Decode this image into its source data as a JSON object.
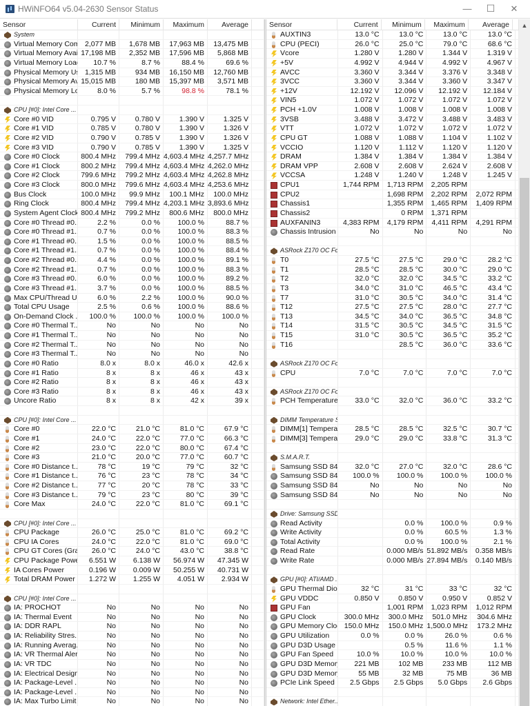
{
  "window": {
    "title": "HWiNFO64 v5.04-2630 Sensor Status",
    "minimize": "—",
    "maximize": "☐",
    "close": "✕"
  },
  "columns": [
    "Sensor",
    "Current",
    "Minimum",
    "Maximum",
    "Average"
  ],
  "left": [
    {
      "group": "System"
    },
    [
      "chip",
      "Virtual Memory Com...",
      "2,077 MB",
      "1,678 MB",
      "17,963 MB",
      "13,475 MB"
    ],
    [
      "chip",
      "Virtual Memory Avai...",
      "17,198 MB",
      "2,352 MB",
      "17,596 MB",
      "5,868 MB"
    ],
    [
      "chip",
      "Virtual Memory Load",
      "10.7 %",
      "8.7 %",
      "88.4 %",
      "69.6 %"
    ],
    [
      "chip",
      "Physical Memory Used",
      "1,315 MB",
      "934 MB",
      "16,150 MB",
      "12,760 MB"
    ],
    [
      "chip",
      "Physical Memory Av...",
      "15,015 MB",
      "180 MB",
      "15,397 MB",
      "3,571 MB"
    ],
    [
      "chip",
      "Physical Memory Load",
      "8.0 %",
      "5.7 %",
      "98.8 %",
      "78.1 %",
      "max"
    ],
    null,
    {
      "group": "CPU [#0]: Intel Core ..."
    },
    [
      "volt",
      "Core #0 VID",
      "0.795 V",
      "0.780 V",
      "1.390 V",
      "1.325 V"
    ],
    [
      "volt",
      "Core #1 VID",
      "0.785 V",
      "0.780 V",
      "1.390 V",
      "1.326 V"
    ],
    [
      "volt",
      "Core #2 VID",
      "0.790 V",
      "0.785 V",
      "1.390 V",
      "1.326 V"
    ],
    [
      "volt",
      "Core #3 VID",
      "0.790 V",
      "0.785 V",
      "1.390 V",
      "1.325 V"
    ],
    [
      "chip",
      "Core #0 Clock",
      "800.4 MHz",
      "799.4 MHz",
      "4,603.4 MHz",
      "4,257.7 MHz"
    ],
    [
      "chip",
      "Core #1 Clock",
      "800.2 MHz",
      "799.4 MHz",
      "4,603.4 MHz",
      "4,262.0 MHz"
    ],
    [
      "chip",
      "Core #2 Clock",
      "799.6 MHz",
      "799.2 MHz",
      "4,603.4 MHz",
      "4,262.8 MHz"
    ],
    [
      "chip",
      "Core #3 Clock",
      "800.0 MHz",
      "799.6 MHz",
      "4,603.4 MHz",
      "4,253.6 MHz"
    ],
    [
      "chip",
      "Bus Clock",
      "100.0 MHz",
      "99.9 MHz",
      "100.1 MHz",
      "100.0 MHz"
    ],
    [
      "chip",
      "Ring Clock",
      "800.4 MHz",
      "799.4 MHz",
      "4,203.1 MHz",
      "3,893.6 MHz"
    ],
    [
      "chip",
      "System Agent Clock",
      "800.4 MHz",
      "799.2 MHz",
      "800.6 MHz",
      "800.0 MHz"
    ],
    [
      "chip",
      "Core #0 Thread #0...",
      "2.2 %",
      "0.0 %",
      "100.0 %",
      "88.7 %"
    ],
    [
      "chip",
      "Core #0 Thread #1...",
      "0.7 %",
      "0.0 %",
      "100.0 %",
      "88.3 %"
    ],
    [
      "chip",
      "Core #1 Thread #0...",
      "1.5 %",
      "0.0 %",
      "100.0 %",
      "88.5 %"
    ],
    [
      "chip",
      "Core #1 Thread #1...",
      "0.7 %",
      "0.0 %",
      "100.0 %",
      "88.4 %"
    ],
    [
      "chip",
      "Core #2 Thread #0...",
      "4.4 %",
      "0.0 %",
      "100.0 %",
      "89.1 %"
    ],
    [
      "chip",
      "Core #2 Thread #1...",
      "0.7 %",
      "0.0 %",
      "100.0 %",
      "88.3 %"
    ],
    [
      "chip",
      "Core #3 Thread #0...",
      "6.0 %",
      "0.0 %",
      "100.0 %",
      "89.2 %"
    ],
    [
      "chip",
      "Core #3 Thread #1...",
      "3.7 %",
      "0.0 %",
      "100.0 %",
      "88.5 %"
    ],
    [
      "chip",
      "Max CPU/Thread U...",
      "6.0 %",
      "2.2 %",
      "100.0 %",
      "90.0 %"
    ],
    [
      "chip",
      "Total CPU Usage",
      "2.5 %",
      "0.6 %",
      "100.0 %",
      "88.6 %"
    ],
    [
      "chip",
      "On-Demand Clock ...",
      "100.0 %",
      "100.0 %",
      "100.0 %",
      "100.0 %"
    ],
    [
      "chip",
      "Core #0 Thermal T...",
      "No",
      "No",
      "No",
      "No"
    ],
    [
      "chip",
      "Core #1 Thermal T...",
      "No",
      "No",
      "No",
      "No"
    ],
    [
      "chip",
      "Core #2 Thermal T...",
      "No",
      "No",
      "No",
      "No"
    ],
    [
      "chip",
      "Core #3 Thermal T...",
      "No",
      "No",
      "No",
      "No"
    ],
    [
      "chip",
      "Core #0 Ratio",
      "8.0 x",
      "8.0 x",
      "46.0 x",
      "42.6 x"
    ],
    [
      "chip",
      "Core #1 Ratio",
      "8 x",
      "8 x",
      "46 x",
      "43 x"
    ],
    [
      "chip",
      "Core #2 Ratio",
      "8 x",
      "8 x",
      "46 x",
      "43 x"
    ],
    [
      "chip",
      "Core #3 Ratio",
      "8 x",
      "8 x",
      "46 x",
      "43 x"
    ],
    [
      "chip",
      "Uncore Ratio",
      "8 x",
      "8 x",
      "42 x",
      "39 x"
    ],
    null,
    {
      "group": "CPU [#0]: Intel Core ..."
    },
    [
      "temp",
      "Core #0",
      "22.0 °C",
      "21.0 °C",
      "81.0 °C",
      "67.9 °C"
    ],
    [
      "temp",
      "Core #1",
      "24.0 °C",
      "22.0 °C",
      "77.0 °C",
      "66.3 °C"
    ],
    [
      "temp",
      "Core #2",
      "23.0 °C",
      "22.0 °C",
      "80.0 °C",
      "67.4 °C"
    ],
    [
      "temp",
      "Core #3",
      "21.0 °C",
      "20.0 °C",
      "77.0 °C",
      "60.7 °C"
    ],
    [
      "temp",
      "Core #0 Distance t...",
      "78 °C",
      "19 °C",
      "79 °C",
      "32 °C"
    ],
    [
      "temp",
      "Core #1 Distance t...",
      "76 °C",
      "23 °C",
      "78 °C",
      "34 °C"
    ],
    [
      "temp",
      "Core #2 Distance t...",
      "77 °C",
      "20 °C",
      "78 °C",
      "33 °C"
    ],
    [
      "temp",
      "Core #3 Distance t...",
      "79 °C",
      "23 °C",
      "80 °C",
      "39 °C"
    ],
    [
      "temp",
      "Core Max",
      "24.0 °C",
      "22.0 °C",
      "81.0 °C",
      "69.1 °C"
    ],
    null,
    {
      "group": "CPU [#0]: Intel Core ..."
    },
    [
      "temp",
      "CPU Package",
      "26.0 °C",
      "25.0 °C",
      "81.0 °C",
      "69.2 °C"
    ],
    [
      "temp",
      "CPU IA Cores",
      "24.0 °C",
      "22.0 °C",
      "81.0 °C",
      "69.0 °C"
    ],
    [
      "temp",
      "CPU GT Cores (Gra...",
      "26.0 °C",
      "24.0 °C",
      "43.0 °C",
      "38.8 °C"
    ],
    [
      "volt",
      "CPU Package Power",
      "6.551 W",
      "6.138 W",
      "56.974 W",
      "47.345 W"
    ],
    [
      "volt",
      "IA Cores Power",
      "0.196 W",
      "0.009 W",
      "50.255 W",
      "40.731 W"
    ],
    [
      "volt",
      "Total DRAM Power",
      "1.272 W",
      "1.255 W",
      "4.051 W",
      "2.934 W"
    ],
    null,
    {
      "group": "CPU [#0]: Intel Core ..."
    },
    [
      "chip",
      "IA: PROCHOT",
      "No",
      "No",
      "No",
      "No"
    ],
    [
      "chip",
      "IA: Thermal Event",
      "No",
      "No",
      "No",
      "No"
    ],
    [
      "chip",
      "IA: DDR RAPL",
      "No",
      "No",
      "No",
      "No"
    ],
    [
      "chip",
      "IA: Reliability Stres...",
      "No",
      "No",
      "No",
      "No"
    ],
    [
      "chip",
      "IA: Running Averag...",
      "No",
      "No",
      "No",
      "No"
    ],
    [
      "chip",
      "IA: VR Thermal Alert",
      "No",
      "No",
      "No",
      "No"
    ],
    [
      "chip",
      "IA: VR TDC",
      "No",
      "No",
      "No",
      "No"
    ],
    [
      "chip",
      "IA: Electrical Design...",
      "No",
      "No",
      "No",
      "No"
    ],
    [
      "chip",
      "IA: Package-Level ...",
      "No",
      "No",
      "No",
      "No"
    ],
    [
      "chip",
      "IA: Package-Level ...",
      "No",
      "No",
      "No",
      "No"
    ],
    [
      "chip",
      "IA: Max Turbo Limit",
      "No",
      "No",
      "No",
      "No"
    ]
  ],
  "right": [
    [
      "temp",
      "AUXTIN3",
      "13.0 °C",
      "13.0 °C",
      "13.0 °C",
      "13.0 °C"
    ],
    [
      "temp",
      "CPU (PECI)",
      "26.0 °C",
      "25.0 °C",
      "79.0 °C",
      "68.6 °C"
    ],
    [
      "volt",
      "Vcore",
      "1.280 V",
      "1.280 V",
      "1.344 V",
      "1.319 V"
    ],
    [
      "volt",
      "+5V",
      "4.992 V",
      "4.944 V",
      "4.992 V",
      "4.967 V"
    ],
    [
      "volt",
      "AVCC",
      "3.360 V",
      "3.344 V",
      "3.376 V",
      "3.348 V"
    ],
    [
      "volt",
      "3VCC",
      "3.360 V",
      "3.344 V",
      "3.360 V",
      "3.347 V"
    ],
    [
      "volt",
      "+12V",
      "12.192 V",
      "12.096 V",
      "12.192 V",
      "12.184 V"
    ],
    [
      "volt",
      "VIN5",
      "1.072 V",
      "1.072 V",
      "1.072 V",
      "1.072 V"
    ],
    [
      "volt",
      "PCH +1.0V",
      "1.008 V",
      "1.008 V",
      "1.008 V",
      "1.008 V"
    ],
    [
      "volt",
      "3VSB",
      "3.488 V",
      "3.472 V",
      "3.488 V",
      "3.483 V"
    ],
    [
      "volt",
      "VTT",
      "1.072 V",
      "1.072 V",
      "1.072 V",
      "1.072 V"
    ],
    [
      "volt",
      "CPU GT",
      "1.088 V",
      "1.088 V",
      "1.104 V",
      "1.102 V"
    ],
    [
      "volt",
      "VCCIO",
      "1.120 V",
      "1.112 V",
      "1.120 V",
      "1.120 V"
    ],
    [
      "volt",
      "DRAM",
      "1.384 V",
      "1.384 V",
      "1.384 V",
      "1.384 V"
    ],
    [
      "volt",
      "DRAM VPP",
      "2.608 V",
      "2.608 V",
      "2.624 V",
      "2.608 V"
    ],
    [
      "volt",
      "VCCSA",
      "1.248 V",
      "1.240 V",
      "1.248 V",
      "1.245 V"
    ],
    [
      "fan",
      "CPU1",
      "1,744 RPM",
      "1,713 RPM",
      "2,205 RPM",
      ""
    ],
    [
      "fan",
      "CPU2",
      "",
      "1,698 RPM",
      "2,202 RPM",
      "2,072 RPM"
    ],
    [
      "fan",
      "Chassis1",
      "",
      "1,355 RPM",
      "1,465 RPM",
      "1,409 RPM"
    ],
    [
      "fan",
      "Chassis2",
      "",
      "0 RPM",
      "1,371 RPM",
      ""
    ],
    [
      "fan",
      "AUXFANIN3",
      "4,383 RPM",
      "4,179 RPM",
      "4,411 RPM",
      "4,291 RPM"
    ],
    [
      "chip",
      "Chassis Intrusion",
      "No",
      "No",
      "No",
      "No"
    ],
    null,
    {
      "group": "ASRock Z170 OC For..."
    },
    [
      "temp",
      "T0",
      "27.5 °C",
      "27.5 °C",
      "29.0 °C",
      "28.2 °C"
    ],
    [
      "temp",
      "T1",
      "28.5 °C",
      "28.5 °C",
      "30.0 °C",
      "29.0 °C"
    ],
    [
      "temp",
      "T2",
      "32.0 °C",
      "32.0 °C",
      "34.5 °C",
      "33.2 °C"
    ],
    [
      "temp",
      "T3",
      "34.0 °C",
      "31.0 °C",
      "46.5 °C",
      "43.4 °C"
    ],
    [
      "temp",
      "T7",
      "31.0 °C",
      "30.5 °C",
      "34.0 °C",
      "31.4 °C"
    ],
    [
      "temp",
      "T12",
      "27.5 °C",
      "27.5 °C",
      "28.0 °C",
      "27.7 °C"
    ],
    [
      "temp",
      "T13",
      "34.5 °C",
      "34.0 °C",
      "36.5 °C",
      "34.8 °C"
    ],
    [
      "temp",
      "T14",
      "31.5 °C",
      "30.5 °C",
      "34.5 °C",
      "31.5 °C"
    ],
    [
      "temp",
      "T15",
      "31.0 °C",
      "30.5 °C",
      "36.5 °C",
      "35.2 °C"
    ],
    [
      "temp",
      "T16",
      "",
      "28.5 °C",
      "36.0 °C",
      "33.6 °C"
    ],
    null,
    {
      "group": "ASRock Z170 OC For..."
    },
    [
      "temp",
      "CPU",
      "7.0 °C",
      "7.0 °C",
      "7.0 °C",
      "7.0 °C"
    ],
    null,
    {
      "group": "ASRock Z170 OC For..."
    },
    [
      "temp",
      "PCH Temperature",
      "33.0 °C",
      "32.0 °C",
      "36.0 °C",
      "33.2 °C"
    ],
    null,
    {
      "group": "DIMM Temperature S..."
    },
    [
      "temp",
      "DIMM[1] Temperature",
      "28.5 °C",
      "28.5 °C",
      "32.5 °C",
      "30.7 °C"
    ],
    [
      "temp",
      "DIMM[3] Temperature",
      "29.0 °C",
      "29.0 °C",
      "33.8 °C",
      "31.3 °C"
    ],
    null,
    {
      "group": "S.M.A.R.T."
    },
    [
      "temp",
      "Samsung SSD 840 S...",
      "32.0 °C",
      "27.0 °C",
      "32.0 °C",
      "28.6 °C"
    ],
    [
      "chip",
      "Samsung SSD 840 S...",
      "100.0 %",
      "100.0 %",
      "100.0 %",
      "100.0 %"
    ],
    [
      "chip",
      "Samsung SSD 840 S...",
      "No",
      "No",
      "No",
      "No"
    ],
    [
      "chip",
      "Samsung SSD 840 S...",
      "No",
      "No",
      "No",
      "No"
    ],
    null,
    {
      "group": "Drive: Samsung SSD ..."
    },
    [
      "chip",
      "Read Activity",
      "",
      "0.0 %",
      "100.0 %",
      "0.9 %"
    ],
    [
      "chip",
      "Write Activity",
      "",
      "0.0 %",
      "60.5 %",
      "1.3 %"
    ],
    [
      "chip",
      "Total Activity",
      "",
      "0.0 %",
      "100.0 %",
      "2.1 %"
    ],
    [
      "chip",
      "Read Rate",
      "",
      "0.000 MB/s",
      "51.892 MB/s",
      "0.358 MB/s"
    ],
    [
      "chip",
      "Write Rate",
      "",
      "0.000 MB/s",
      "27.894 MB/s",
      "0.140 MB/s"
    ],
    null,
    {
      "group": "GPU [#0]: ATI/AMD ..."
    },
    [
      "temp",
      "GPU Thermal Diode",
      "32 °C",
      "31 °C",
      "33 °C",
      "32 °C"
    ],
    [
      "volt",
      "GPU VDDC",
      "0.850 V",
      "0.850 V",
      "0.950 V",
      "0.852 V"
    ],
    [
      "fan",
      "GPU Fan",
      "",
      "1,001 RPM",
      "1,023 RPM",
      "1,012 RPM"
    ],
    [
      "chip",
      "GPU Clock",
      "300.0 MHz",
      "300.0 MHz",
      "501.0 MHz",
      "304.6 MHz"
    ],
    [
      "chip",
      "GPU Memory Clock",
      "150.0 MHz",
      "150.0 MHz",
      "1,500.0 MHz",
      "173.2 MHz"
    ],
    [
      "chip",
      "GPU Utilization",
      "0.0 %",
      "0.0 %",
      "26.0 %",
      "0.6 %"
    ],
    [
      "chip",
      "GPU D3D Usage",
      "",
      "0.5 %",
      "11.6 %",
      "1.1 %"
    ],
    [
      "chip",
      "GPU Fan Speed",
      "10.0 %",
      "10.0 %",
      "10.0 %",
      "10.0 %"
    ],
    [
      "chip",
      "GPU D3D Memory D...",
      "221 MB",
      "102 MB",
      "233 MB",
      "112 MB"
    ],
    [
      "chip",
      "GPU D3D Memory D...",
      "55 MB",
      "32 MB",
      "75 MB",
      "36 MB"
    ],
    [
      "chip",
      "PCIe Link Speed",
      "2.5 Gbps",
      "2.5 Gbps",
      "5.0 Gbps",
      "2.6 Gbps"
    ],
    null,
    {
      "group": "Network: Intel Ether..."
    }
  ],
  "colors": {
    "alert": "#d02030",
    "fan_icon": "#a33",
    "volt_icon": "#f3c623"
  }
}
